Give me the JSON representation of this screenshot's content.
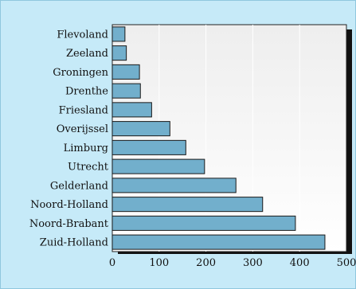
{
  "chart_data": {
    "type": "bar",
    "orientation": "horizontal",
    "categories": [
      "Flevoland",
      "Zeeland",
      "Groningen",
      "Drenthe",
      "Friesland",
      "Overijssel",
      "Limburg",
      "Utrecht",
      "Gelderland",
      "Noord-Holland",
      "Noord-Brabant",
      "Zuid-Holland"
    ],
    "values": [
      27,
      30,
      58,
      60,
      84,
      123,
      157,
      197,
      264,
      321,
      391,
      454
    ],
    "xlim": [
      0,
      500
    ],
    "xticks": [
      0,
      100,
      200,
      300,
      400,
      500
    ],
    "title": "",
    "xlabel": "",
    "ylabel": "",
    "grid": "vertical",
    "colors": {
      "bar": "#72afcc",
      "bar_stroke": "#1a1a1a",
      "background": "#c6eaf8",
      "plot_top": "#eeeeee",
      "plot_bottom": "#ffffff",
      "shadow": "#111111"
    }
  }
}
